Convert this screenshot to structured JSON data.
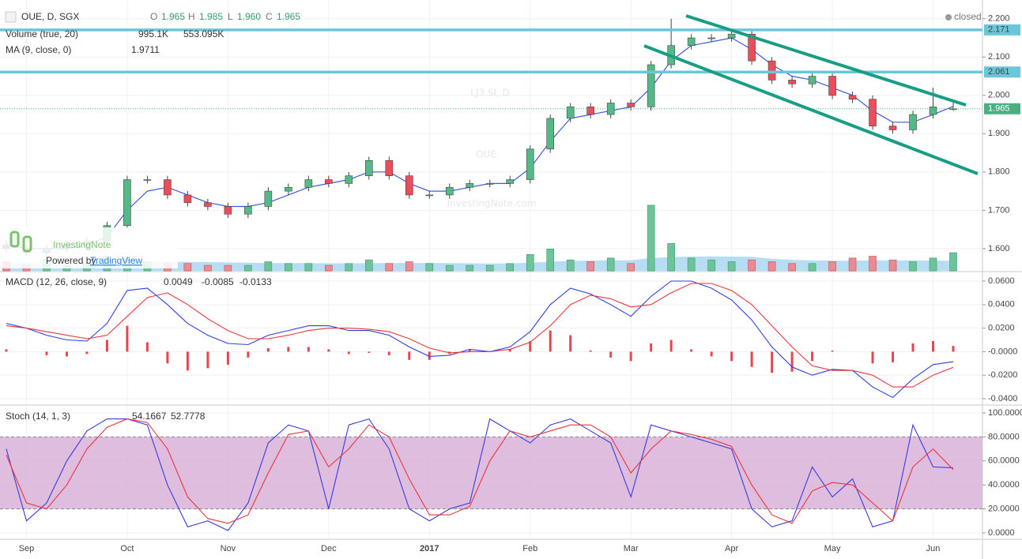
{
  "header": {
    "symbol": "OUE, D, SGX",
    "o_label": "O",
    "o": "1.965",
    "h_label": "H",
    "h": "1.985",
    "l_label": "L",
    "l": "1.960",
    "c_label": "C",
    "c": "1.965",
    "status": "closed"
  },
  "watermark": {
    "ticker": "LJ3.SI, D",
    "name": "OUE",
    "site": "InvestingNote.com"
  },
  "logo": {
    "brand": "InvestingNote",
    "powered": "Powered by",
    "provider": "TradingView"
  },
  "chart_data": [
    {
      "type": "candlestick",
      "categories": [
        null,
        "Sep",
        null,
        null,
        null,
        null,
        "Oct",
        null,
        null,
        null,
        null,
        "Nov",
        null,
        null,
        null,
        null,
        "Dec",
        null,
        null,
        null,
        null,
        "2017",
        null,
        null,
        null,
        null,
        "Feb",
        null,
        null,
        null,
        null,
        "Mar",
        null,
        null,
        null,
        null,
        "Apr",
        null,
        null,
        null,
        null,
        "May",
        null,
        null,
        null,
        null,
        "Jun",
        null
      ],
      "series": [
        {
          "up_color": "#53b987",
          "down_color": "#eb4d5c",
          "wick_color": "#444444",
          "open": [
            1.61,
            1.6,
            1.59,
            1.6,
            1.61,
            1.62,
            1.66,
            1.78,
            1.78,
            1.74,
            1.72,
            1.71,
            1.69,
            1.71,
            1.75,
            1.76,
            1.78,
            1.77,
            1.79,
            1.83,
            1.79,
            1.74,
            1.74,
            1.76,
            1.77,
            1.77,
            1.78,
            1.86,
            1.94,
            1.97,
            1.95,
            1.98,
            1.97,
            2.08,
            2.13,
            2.15,
            2.15,
            2.16,
            2.09,
            2.04,
            2.03,
            2.05,
            2.0,
            1.99,
            1.92,
            1.91,
            1.95,
            1.965
          ],
          "high": [
            1.62,
            1.61,
            1.61,
            1.62,
            1.63,
            1.67,
            1.79,
            1.79,
            1.79,
            1.75,
            1.73,
            1.72,
            1.72,
            1.76,
            1.77,
            1.79,
            1.79,
            1.8,
            1.84,
            1.84,
            1.8,
            1.75,
            1.77,
            1.78,
            1.78,
            1.79,
            1.87,
            1.95,
            1.98,
            1.98,
            1.99,
            1.99,
            2.09,
            2.2,
            2.16,
            2.16,
            2.17,
            2.17,
            2.1,
            2.05,
            2.06,
            2.06,
            2.01,
            2.0,
            1.93,
            1.96,
            2.02,
            1.985
          ],
          "low": [
            1.59,
            1.58,
            1.58,
            1.59,
            1.6,
            1.61,
            1.65,
            1.77,
            1.73,
            1.71,
            1.7,
            1.68,
            1.68,
            1.7,
            1.74,
            1.75,
            1.76,
            1.76,
            1.78,
            1.78,
            1.73,
            1.73,
            1.73,
            1.75,
            1.76,
            1.76,
            1.77,
            1.85,
            1.93,
            1.94,
            1.94,
            1.96,
            1.96,
            2.07,
            2.12,
            2.14,
            2.14,
            2.08,
            2.03,
            2.02,
            2.02,
            1.99,
            1.98,
            1.91,
            1.9,
            1.9,
            1.94,
            1.96
          ],
          "close": [
            1.6,
            1.59,
            1.6,
            1.61,
            1.62,
            1.66,
            1.78,
            1.78,
            1.74,
            1.72,
            1.71,
            1.69,
            1.71,
            1.75,
            1.76,
            1.78,
            1.77,
            1.79,
            1.83,
            1.79,
            1.74,
            1.74,
            1.76,
            1.77,
            1.77,
            1.78,
            1.86,
            1.94,
            1.97,
            1.95,
            1.98,
            1.97,
            2.08,
            2.13,
            2.15,
            2.15,
            2.16,
            2.09,
            2.04,
            2.03,
            2.05,
            2.0,
            1.99,
            1.92,
            1.91,
            1.95,
            1.97,
            1.965
          ]
        }
      ],
      "volume": {
        "name": "Volume (true, 20)",
        "ylim": [
          0,
          7800000
        ],
        "up_color": "#6cc49a",
        "down_color": "#ec8a92",
        "ma_color": "#9ed2f0",
        "values": [
          500000,
          300000,
          600000,
          300000,
          400000,
          800000,
          700000,
          500000,
          400000,
          400000,
          300000,
          300000,
          300000,
          500000,
          400000,
          400000,
          300000,
          400000,
          600000,
          400000,
          500000,
          400000,
          300000,
          300000,
          300000,
          400000,
          900000,
          1200000,
          600000,
          500000,
          700000,
          400000,
          3600000,
          1500000,
          700000,
          600000,
          500000,
          600000,
          500000,
          400000,
          400000,
          500000,
          700000,
          800000,
          600000,
          500000,
          700000,
          995100
        ],
        "ma": [
          450000,
          450000,
          460000,
          450000,
          440000,
          470000,
          500000,
          510000,
          500000,
          490000,
          480000,
          460000,
          440000,
          430000,
          420000,
          420000,
          410000,
          410000,
          420000,
          420000,
          430000,
          430000,
          420000,
          410000,
          400000,
          400000,
          440000,
          500000,
          540000,
          560000,
          580000,
          570000,
          700000,
          760000,
          780000,
          790000,
          780000,
          770000,
          660000,
          600000,
          570000,
          560000,
          560000,
          570000,
          580000,
          570000,
          560000,
          553095
        ],
        "legend_labels": [
          "995.1K",
          "553.095K"
        ],
        "legend_colors": [
          "#3c9b6c",
          "#1e88e5"
        ]
      },
      "ma": {
        "name": "MA (9, close, 0)",
        "color": "#3f5bd8",
        "values": [
          1.61,
          1.6,
          1.6,
          1.6,
          1.61,
          1.63,
          1.7,
          1.75,
          1.76,
          1.74,
          1.72,
          1.71,
          1.71,
          1.72,
          1.74,
          1.76,
          1.77,
          1.78,
          1.8,
          1.8,
          1.77,
          1.75,
          1.75,
          1.76,
          1.77,
          1.77,
          1.81,
          1.88,
          1.94,
          1.95,
          1.96,
          1.97,
          2.02,
          2.09,
          2.13,
          2.14,
          2.15,
          2.12,
          2.08,
          2.05,
          2.04,
          2.02,
          2.0,
          1.96,
          1.93,
          1.93,
          1.95,
          1.9711
        ]
      },
      "hlines": [
        {
          "value": 2.171,
          "color": "#6ac6d8"
        },
        {
          "value": 2.061,
          "color": "#6ac6d8"
        }
      ],
      "last_price": {
        "value": 1.965,
        "color": "#4caf84"
      },
      "ylim": [
        1.542,
        2.249
      ],
      "yticks": [
        {
          "value": 1.6,
          "label": "1.600"
        },
        {
          "value": 1.7,
          "label": "1.700"
        },
        {
          "value": 1.8,
          "label": "1.800"
        },
        {
          "value": 1.9,
          "label": "1.900"
        },
        {
          "value": 2.0,
          "label": "2.000"
        },
        {
          "value": 2.1,
          "label": "2.100"
        },
        {
          "value": 2.2,
          "label": "2.200"
        }
      ],
      "grid": true
    },
    {
      "type": "macd",
      "title": "MACD (12, 26, close, 9)",
      "series": [
        {
          "kind": "bar",
          "color": "#e8464f",
          "values": [
            0.002,
            0.0,
            -0.003,
            -0.004,
            -0.002,
            0.01,
            0.022,
            0.008,
            -0.01,
            -0.016,
            -0.014,
            -0.011,
            -0.005,
            0.003,
            0.004,
            0.004,
            0.002,
            -0.002,
            -0.001,
            -0.003,
            -0.007,
            -0.007,
            -0.002,
            0.002,
            0.0,
            0.002,
            0.009,
            0.018,
            0.014,
            0.001,
            -0.005,
            -0.008,
            0.007,
            0.01,
            0.002,
            -0.004,
            -0.008,
            -0.013,
            -0.018,
            -0.017,
            -0.008,
            0.001,
            0.0,
            -0.01,
            -0.009,
            0.007,
            0.009,
            0.0049
          ]
        },
        {
          "kind": "line",
          "color": "#2f3fe0",
          "values": [
            0.024,
            0.02,
            0.014,
            0.01,
            0.009,
            0.024,
            0.052,
            0.054,
            0.04,
            0.024,
            0.014,
            0.007,
            0.006,
            0.014,
            0.018,
            0.022,
            0.022,
            0.018,
            0.018,
            0.014,
            0.004,
            -0.004,
            -0.003,
            0.002,
            0.0,
            0.004,
            0.017,
            0.04,
            0.054,
            0.049,
            0.04,
            0.03,
            0.047,
            0.06,
            0.06,
            0.054,
            0.044,
            0.027,
            0.004,
            -0.013,
            -0.02,
            -0.015,
            -0.016,
            -0.03,
            -0.039,
            -0.023,
            -0.011,
            -0.0085
          ]
        },
        {
          "kind": "line",
          "color": "#e8363c",
          "values": [
            0.022,
            0.02,
            0.017,
            0.014,
            0.011,
            0.014,
            0.03,
            0.046,
            0.05,
            0.04,
            0.028,
            0.018,
            0.011,
            0.011,
            0.014,
            0.018,
            0.02,
            0.02,
            0.019,
            0.017,
            0.011,
            0.003,
            -0.001,
            0.0,
            0.0,
            0.002,
            0.008,
            0.022,
            0.04,
            0.048,
            0.045,
            0.038,
            0.04,
            0.05,
            0.058,
            0.058,
            0.052,
            0.04,
            0.022,
            0.004,
            -0.012,
            -0.016,
            -0.016,
            -0.02,
            -0.03,
            -0.03,
            -0.02,
            -0.0133
          ]
        }
      ],
      "ylim": [
        -0.0447,
        0.0674
      ],
      "yticks": [
        {
          "value": -0.04,
          "label": "-0.0400"
        },
        {
          "value": -0.02,
          "label": "-0.0200"
        },
        {
          "value": 0,
          "label": "-0.0000"
        },
        {
          "value": 0.02,
          "label": "0.0200"
        },
        {
          "value": 0.04,
          "label": "0.0400"
        },
        {
          "value": 0.06,
          "label": "0.0600"
        }
      ],
      "grid": true
    },
    {
      "type": "stoch",
      "title": "Stoch (14, 1, 3)",
      "band": [
        20,
        80
      ],
      "band_color": "#d8b2d8",
      "series": [
        {
          "kind": "line",
          "color": "#3b3bdc",
          "values": [
            70,
            10,
            25,
            60,
            85,
            95,
            95,
            90,
            40,
            5,
            10,
            2,
            25,
            75,
            90,
            85,
            20,
            90,
            95,
            70,
            20,
            10,
            20,
            25,
            95,
            85,
            75,
            90,
            95,
            85,
            75,
            30,
            90,
            85,
            80,
            75,
            70,
            20,
            5,
            10,
            55,
            30,
            45,
            5,
            10,
            90,
            55,
            54.1667
          ]
        },
        {
          "kind": "line",
          "color": "#e8363c",
          "values": [
            65,
            25,
            20,
            40,
            70,
            88,
            95,
            92,
            70,
            30,
            12,
            8,
            15,
            50,
            82,
            85,
            55,
            70,
            90,
            80,
            45,
            15,
            15,
            22,
            60,
            85,
            80,
            85,
            90,
            90,
            80,
            50,
            70,
            85,
            82,
            78,
            72,
            40,
            15,
            8,
            35,
            42,
            40,
            25,
            10,
            55,
            70,
            52.7778
          ]
        }
      ],
      "ylim": [
        -5.3,
        105.9
      ],
      "yticks": [
        {
          "value": 0,
          "label": "0.0000"
        },
        {
          "value": 20,
          "label": "20.0000"
        },
        {
          "value": 40,
          "label": "40.0000"
        },
        {
          "value": 60,
          "label": "60.0000"
        },
        {
          "value": 80,
          "label": "80.0000"
        },
        {
          "value": 100,
          "label": "100.0000"
        }
      ],
      "grid": true
    }
  ]
}
